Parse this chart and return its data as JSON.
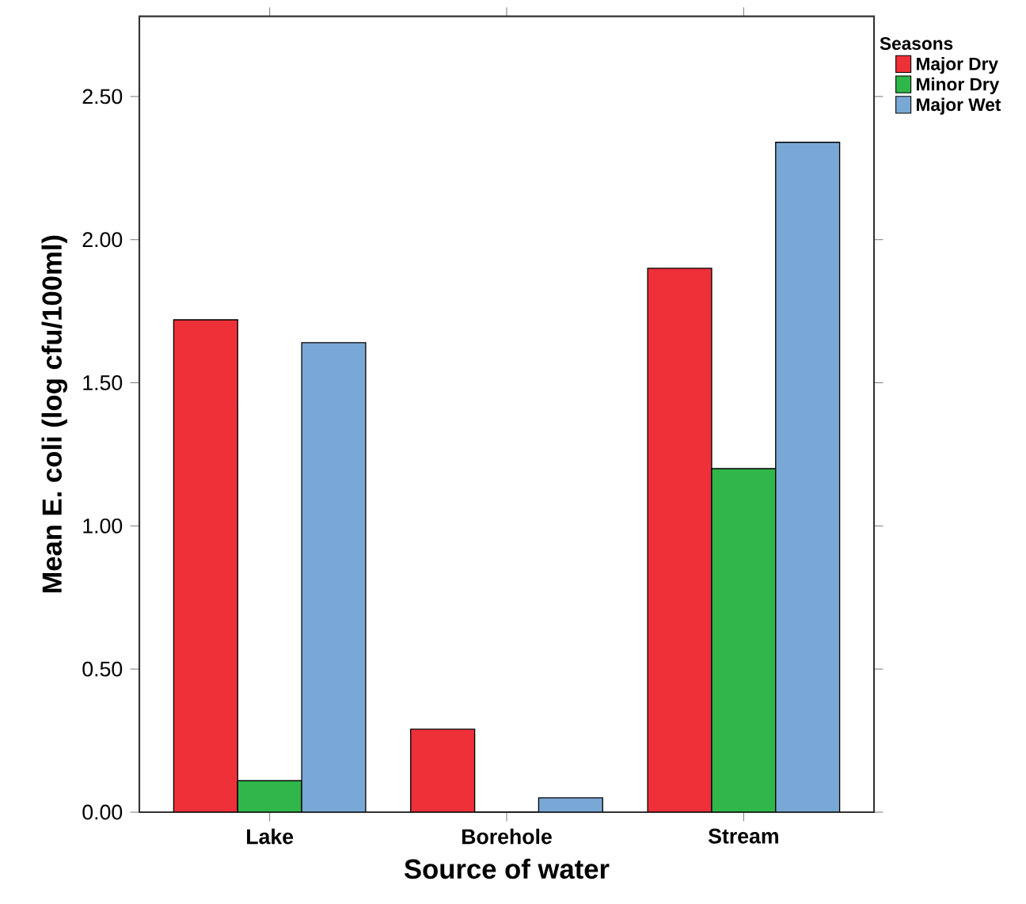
{
  "chart_data": {
    "type": "bar",
    "xlabel": "Source of water",
    "ylabel": "Mean E. coli (log cfu/100ml)",
    "legend_title": "Seasons",
    "legend": "right",
    "grid": false,
    "categories": [
      "Lake",
      "Borehole",
      "Stream"
    ],
    "series": [
      {
        "name": "Major Dry",
        "color": "#ee3039",
        "values": [
          1.72,
          0.29,
          1.9
        ]
      },
      {
        "name": "Minor Dry",
        "color": "#2fb74a",
        "values": [
          0.11,
          0,
          1.2
        ]
      },
      {
        "name": "Major Wet",
        "color": "#7aa8d6",
        "values": [
          1.64,
          0.05,
          2.34
        ]
      }
    ],
    "ylim": [
      0,
      2.78
    ],
    "yticks": [
      {
        "value": 0,
        "label": "0.00"
      },
      {
        "value": 0.5,
        "label": "0.50"
      },
      {
        "value": 1,
        "label": "1.00"
      },
      {
        "value": 1.5,
        "label": "1.50"
      },
      {
        "value": 2,
        "label": "2.00"
      },
      {
        "value": 2.5,
        "label": "2.50"
      }
    ]
  }
}
